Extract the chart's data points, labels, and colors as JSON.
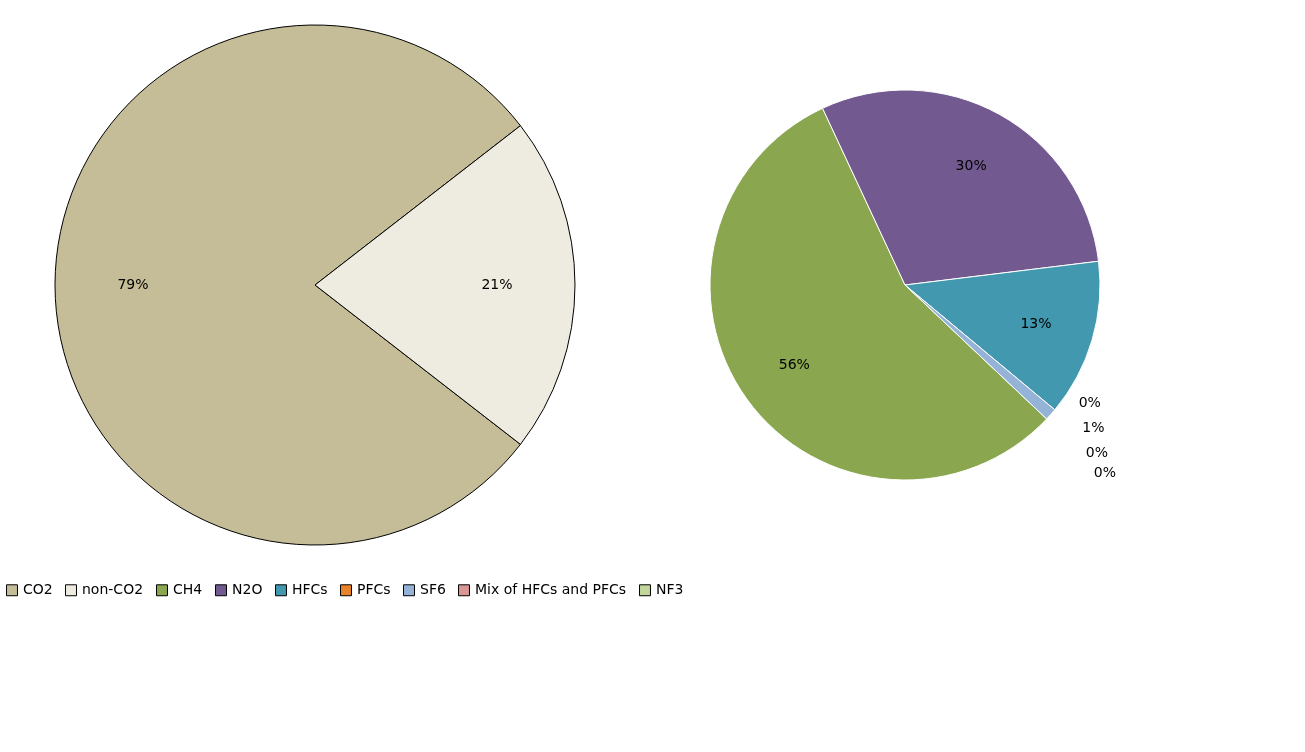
{
  "chart_data": [
    {
      "type": "pie",
      "categories": [
        "CO2",
        "non-CO2"
      ],
      "values": [
        79,
        21
      ],
      "colors": [
        "#c4bd97",
        "#eeece1"
      ],
      "value_labels": [
        "79%",
        "21%"
      ],
      "legend": "bottom"
    },
    {
      "type": "pie",
      "categories": [
        "CH4",
        "N2O",
        "HFCs",
        "PFCs",
        "SF6",
        "Mix of HFCs and PFCs",
        "NF3"
      ],
      "values": [
        56,
        30,
        13,
        0,
        1,
        0,
        0
      ],
      "colors": [
        "#8aa64e",
        "#725990",
        "#4198af",
        "#e9832a",
        "#95b3d7",
        "#d99694",
        "#c3d69b"
      ],
      "value_labels": [
        "56%",
        "30%",
        "13%",
        "0%",
        "1%",
        "0%",
        "0%"
      ],
      "legend": "bottom"
    }
  ]
}
